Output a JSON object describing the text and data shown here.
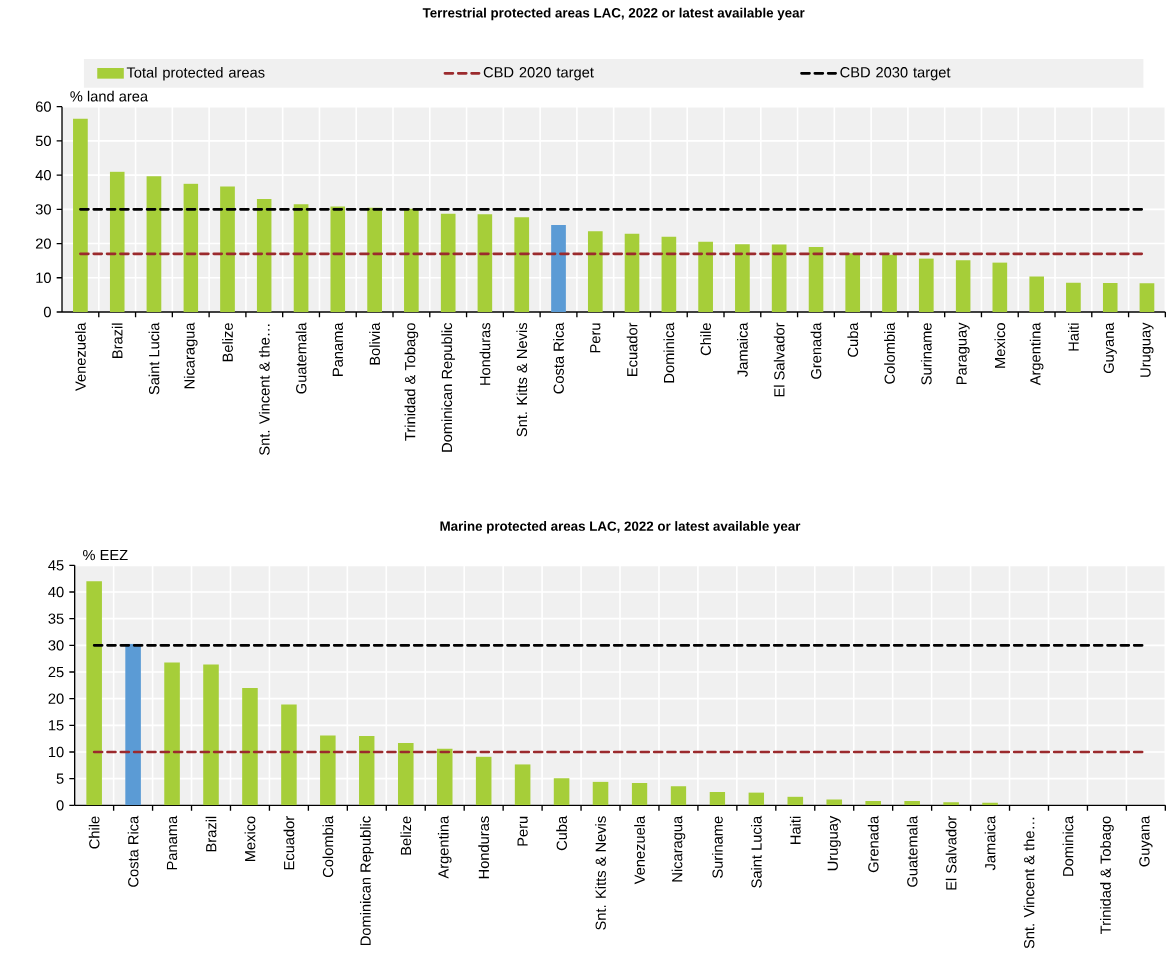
{
  "chart_data": [
    {
      "type": "bar",
      "title": "Terrestrial protected areas LAC, 2022 or latest available year",
      "ylabel": "% land area",
      "categories": [
        "Venezuela",
        "Brazil",
        "Saint Lucia",
        "Nicaragua",
        "Belize",
        "Snt. Vincent & the…",
        "Guatemala",
        "Panama",
        "Bolivia",
        "Trinidad & Tobago",
        "Dominican Republic",
        "Honduras",
        "Snt. Kitts & Nevis",
        "Costa Rica",
        "Peru",
        "Ecuador",
        "Dominica",
        "Chile",
        "Jamaica",
        "El Salvador",
        "Grenada",
        "Cuba",
        "Colombia",
        "Suriname",
        "Paraguay",
        "Mexico",
        "Argentina",
        "Haiti",
        "Guyana",
        "Uruguay"
      ],
      "series": [
        {
          "name": "Total protected areas",
          "color": "#a6ce39",
          "colors": [
            "#a6ce39",
            "#a6ce39",
            "#a6ce39",
            "#a6ce39",
            "#a6ce39",
            "#a6ce39",
            "#a6ce39",
            "#a6ce39",
            "#a6ce39",
            "#a6ce39",
            "#a6ce39",
            "#a6ce39",
            "#a6ce39",
            "#5b9bd5",
            "#a6ce39",
            "#a6ce39",
            "#a6ce39",
            "#a6ce39",
            "#a6ce39",
            "#a6ce39",
            "#a6ce39",
            "#a6ce39",
            "#a6ce39",
            "#a6ce39",
            "#a6ce39",
            "#a6ce39",
            "#a6ce39",
            "#a6ce39",
            "#a6ce39",
            "#a6ce39"
          ],
          "values": [
            56.5,
            41,
            39.7,
            37.5,
            36.7,
            33,
            31.5,
            30.8,
            30.5,
            30.2,
            28.7,
            28.6,
            27.7,
            25.4,
            23.6,
            22.9,
            22,
            20.5,
            19.8,
            19.7,
            19,
            17.2,
            16.7,
            15.6,
            15.1,
            14.5,
            10.4,
            8.6,
            8.5,
            8.4
          ]
        }
      ],
      "ylim": [
        0,
        60
      ],
      "yticks": [
        0,
        10,
        20,
        30,
        40,
        50,
        60
      ],
      "grid": true,
      "legend": "top",
      "ref_lines": [
        {
          "axis": "y",
          "value": 17,
          "label": "CBD 2020 target",
          "color": "#9b2a2d",
          "line_style": "dashed"
        },
        {
          "axis": "y",
          "value": 30,
          "label": "CBD 2030 target",
          "color": "#000000",
          "line_style": "dashed"
        }
      ]
    },
    {
      "type": "bar",
      "title": "Marine protected areas LAC, 2022 or latest available year",
      "ylabel": "% EEZ",
      "categories": [
        "Chile",
        "Costa Rica",
        "Panama",
        "Brazil",
        "Mexico",
        "Ecuador",
        "Colombia",
        "Dominican Republic",
        "Belize",
        "Argentina",
        "Honduras",
        "Peru",
        "Cuba",
        "Snt. Kitts & Nevis",
        "Venezuela",
        "Nicaragua",
        "Suriname",
        "Saint Lucia",
        "Haiti",
        "Uruguay",
        "Grenada",
        "Guatemala",
        "El Salvador",
        "Jamaica",
        "Snt. Vincent & the…",
        "Dominica",
        "Trinidad & Tobago",
        "Guyana"
      ],
      "series": [
        {
          "color": "#a6ce39",
          "colors": [
            "#a6ce39",
            "#5b9bd5",
            "#a6ce39",
            "#a6ce39",
            "#a6ce39",
            "#a6ce39",
            "#a6ce39",
            "#a6ce39",
            "#a6ce39",
            "#a6ce39",
            "#a6ce39",
            "#a6ce39",
            "#a6ce39",
            "#a6ce39",
            "#a6ce39",
            "#a6ce39",
            "#a6ce39",
            "#a6ce39",
            "#a6ce39",
            "#a6ce39",
            "#a6ce39",
            "#a6ce39",
            "#a6ce39",
            "#a6ce39",
            "#a6ce39",
            "#a6ce39",
            "#a6ce39",
            "#a6ce39"
          ],
          "values": [
            42,
            30.3,
            26.8,
            26.4,
            22,
            18.9,
            13.1,
            13,
            11.7,
            10.6,
            9.1,
            7.7,
            5.1,
            4.4,
            4.2,
            3.6,
            2.5,
            2.4,
            1.6,
            1.1,
            0.8,
            0.8,
            0.6,
            0.5,
            null,
            0,
            0,
            0
          ]
        }
      ],
      "ylim": [
        0,
        45
      ],
      "yticks": [
        0,
        5,
        10,
        15,
        20,
        25,
        30,
        35,
        40,
        45
      ],
      "grid": true,
      "ref_lines": [
        {
          "axis": "y",
          "value": 10,
          "color": "#9b2a2d",
          "line_style": "dashed"
        },
        {
          "axis": "y",
          "value": 30,
          "color": "#000000",
          "line_style": "dashed"
        }
      ]
    }
  ]
}
